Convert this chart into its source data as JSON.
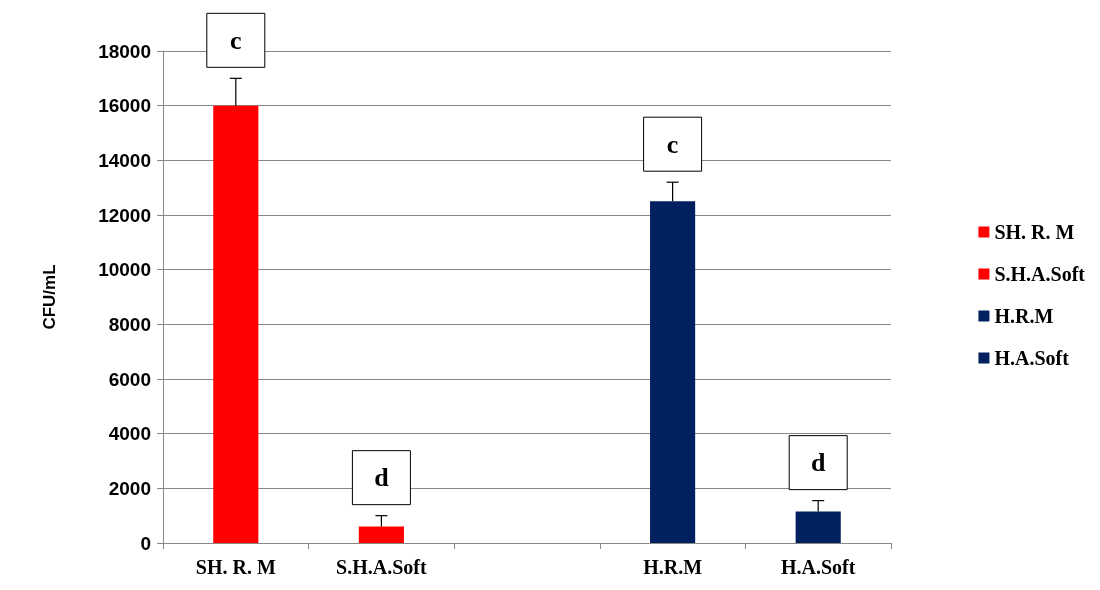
{
  "chart_data": {
    "type": "bar",
    "ylabel": "CFU/mL",
    "categories": [
      "SH. R. M",
      "S.H.A.Soft",
      null,
      "H.R.M",
      "H.A.Soft"
    ],
    "stacked": true,
    "series": [
      {
        "name": "SH. R. M",
        "color": "#ff0000",
        "values": [
          16000,
          null,
          null,
          null,
          null
        ],
        "errors": [
          [
            16000,
            17000
          ],
          null,
          null,
          null,
          null
        ]
      },
      {
        "name": "S.H.A.Soft",
        "color": "#ff0000",
        "values": [
          null,
          600,
          null,
          null,
          null
        ],
        "errors": [
          null,
          [
            600,
            1000
          ],
          null,
          null,
          null
        ]
      },
      {
        "name": "H.R.M",
        "color": "#002060",
        "values": [
          null,
          null,
          null,
          12500,
          null
        ],
        "errors": [
          null,
          null,
          null,
          [
            12500,
            13200
          ],
          null
        ]
      },
      {
        "name": "H.A.Soft",
        "color": "#002060",
        "values": [
          null,
          null,
          null,
          null,
          1150
        ],
        "errors": [
          null,
          null,
          null,
          null,
          [
            1150,
            1550
          ]
        ]
      }
    ],
    "ylim": [
      0,
      18000
    ],
    "yticks": [
      0,
      2000,
      4000,
      6000,
      8000,
      10000,
      12000,
      14000,
      16000,
      18000
    ],
    "grid": "y",
    "legend": "right",
    "annotations": [
      {
        "text": "c",
        "x": "SH. R. M",
        "y": 17000
      },
      {
        "text": "d",
        "x": "S.H.A.Soft",
        "y": 1000
      },
      {
        "text": "c",
        "x": "H.R.M",
        "y": 13200
      },
      {
        "text": "d",
        "x": "H.A.Soft",
        "y": 1550
      }
    ]
  }
}
